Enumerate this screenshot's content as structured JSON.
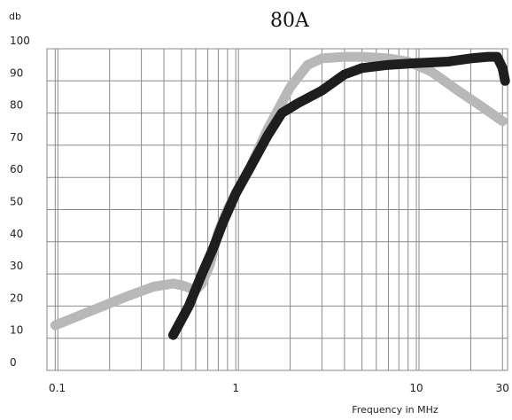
{
  "chart_data": {
    "type": "line",
    "title": "80A",
    "ylabel": "db",
    "xlabel": "Frequency in MHz",
    "x_scale": "log",
    "xlim": [
      0.09,
      32
    ],
    "ylim": [
      0,
      100
    ],
    "grid": true,
    "x_tick_labels": [
      "0.1",
      "1",
      "10",
      "30"
    ],
    "y_tick_labels": [
      "0",
      "10",
      "20",
      "30",
      "40",
      "50",
      "60",
      "70",
      "80",
      "90",
      "100"
    ],
    "colors": {
      "dark_series": "#1e1e1e",
      "light_series": "#b8b8b8",
      "grid": "#8a8a8a"
    },
    "series": [
      {
        "color": "#b8b8b8",
        "points": [
          [
            0.1,
            14
          ],
          [
            0.15,
            18
          ],
          [
            0.25,
            23
          ],
          [
            0.35,
            26
          ],
          [
            0.45,
            27
          ],
          [
            0.5,
            26.5
          ],
          [
            0.6,
            25
          ],
          [
            0.65,
            27
          ],
          [
            0.72,
            33
          ],
          [
            0.8,
            43
          ],
          [
            0.9,
            50
          ],
          [
            1.0,
            55
          ],
          [
            1.2,
            63
          ],
          [
            1.5,
            75
          ],
          [
            2.0,
            88
          ],
          [
            2.5,
            95
          ],
          [
            3.0,
            97
          ],
          [
            4.0,
            97.5
          ],
          [
            5.0,
            97.5
          ],
          [
            7.0,
            97
          ],
          [
            9.0,
            96
          ],
          [
            12.0,
            93
          ],
          [
            17.0,
            87
          ],
          [
            23.0,
            82
          ],
          [
            30.0,
            77.5
          ]
        ]
      },
      {
        "color": "#1e1e1e",
        "points": [
          [
            0.45,
            11
          ],
          [
            0.55,
            20
          ],
          [
            0.65,
            30
          ],
          [
            0.75,
            38
          ],
          [
            0.85,
            46
          ],
          [
            1.0,
            55
          ],
          [
            1.2,
            63
          ],
          [
            1.5,
            73
          ],
          [
            1.8,
            80
          ],
          [
            2.2,
            83
          ],
          [
            3.0,
            87
          ],
          [
            4.0,
            92
          ],
          [
            5.0,
            94
          ],
          [
            7.0,
            95
          ],
          [
            10.0,
            95.5
          ],
          [
            15.0,
            96
          ],
          [
            20.0,
            97
          ],
          [
            25.0,
            97.5
          ],
          [
            28.0,
            97.5
          ],
          [
            30.0,
            94
          ],
          [
            31.0,
            90
          ]
        ]
      }
    ]
  }
}
